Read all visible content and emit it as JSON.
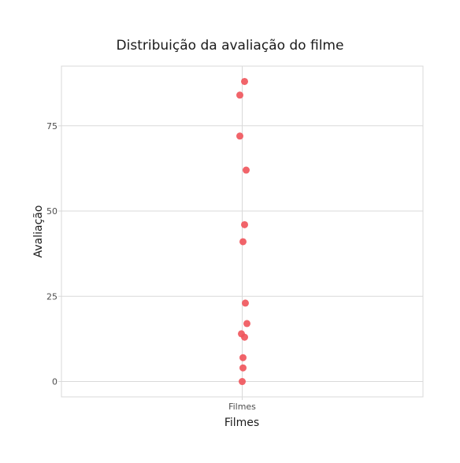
{
  "chart_data": {
    "type": "scatter",
    "title": "Distribuição da avaliação do filme",
    "xlabel": "Filmes",
    "ylabel": "Avaliação",
    "categories": [
      "Filmes"
    ],
    "yticks": [
      0,
      25,
      50,
      75
    ],
    "ylim": [
      -4.5,
      92.5
    ],
    "grid": true,
    "legend": "none",
    "point_color": "#f0535a",
    "grid_color": "#d9d9d9",
    "points": [
      {
        "x": "Filmes",
        "y": 88
      },
      {
        "x": "Filmes",
        "y": 84
      },
      {
        "x": "Filmes",
        "y": 72
      },
      {
        "x": "Filmes",
        "y": 62
      },
      {
        "x": "Filmes",
        "y": 46
      },
      {
        "x": "Filmes",
        "y": 41
      },
      {
        "x": "Filmes",
        "y": 23
      },
      {
        "x": "Filmes",
        "y": 17
      },
      {
        "x": "Filmes",
        "y": 14
      },
      {
        "x": "Filmes",
        "y": 13
      },
      {
        "x": "Filmes",
        "y": 7
      },
      {
        "x": "Filmes",
        "y": 4
      },
      {
        "x": "Filmes",
        "y": 0
      }
    ]
  }
}
